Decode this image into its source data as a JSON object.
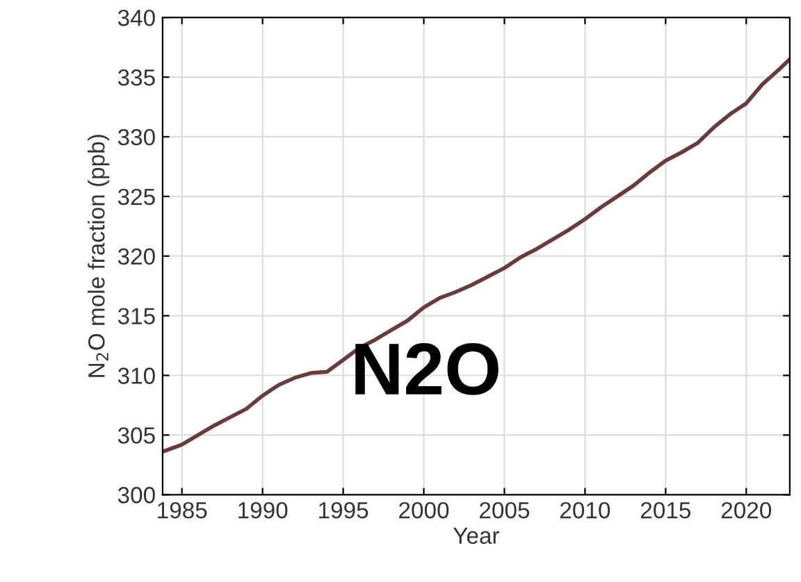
{
  "chart_data": {
    "type": "line",
    "xlabel": "Year",
    "ylabel": "N$_{2}$O mole fraction (ppb)",
    "annotations": [
      "N2O"
    ],
    "x": [
      1983.8,
      1985,
      1986,
      1987,
      1988,
      1989,
      1990,
      1991,
      1992,
      1993,
      1994,
      1995,
      1996,
      1997,
      1998,
      1999,
      2000,
      2001,
      2002,
      2003,
      2004,
      2005,
      2006,
      2007,
      2008,
      2009,
      2010,
      2011,
      2012,
      2013,
      2014,
      2015,
      2016,
      2017,
      2018,
      2019,
      2020,
      2021,
      2022,
      2022.7
    ],
    "series": [
      {
        "color": "#6b3a3a",
        "values": [
          303.6,
          304.2,
          305.0,
          305.8,
          306.5,
          307.2,
          308.3,
          309.2,
          309.8,
          310.2,
          310.3,
          311.3,
          312.3,
          313.0,
          313.8,
          314.6,
          315.7,
          316.5,
          317.0,
          317.6,
          318.3,
          319.0,
          319.9,
          320.6,
          321.4,
          322.2,
          323.1,
          324.1,
          325.0,
          325.9,
          327.0,
          328.0,
          328.7,
          329.5,
          330.8,
          331.9,
          332.8,
          334.4,
          335.6,
          336.5
        ]
      }
    ],
    "xlim": [
      1983.8,
      2022.7
    ],
    "ylim": [
      300,
      340
    ],
    "xticks": [
      1985,
      1990,
      1995,
      2000,
      2005,
      2010,
      2015,
      2020
    ],
    "yticks": [
      300,
      305,
      310,
      315,
      320,
      325,
      330,
      335,
      340
    ],
    "grid": true,
    "marker": "none",
    "line_style": "solid"
  }
}
